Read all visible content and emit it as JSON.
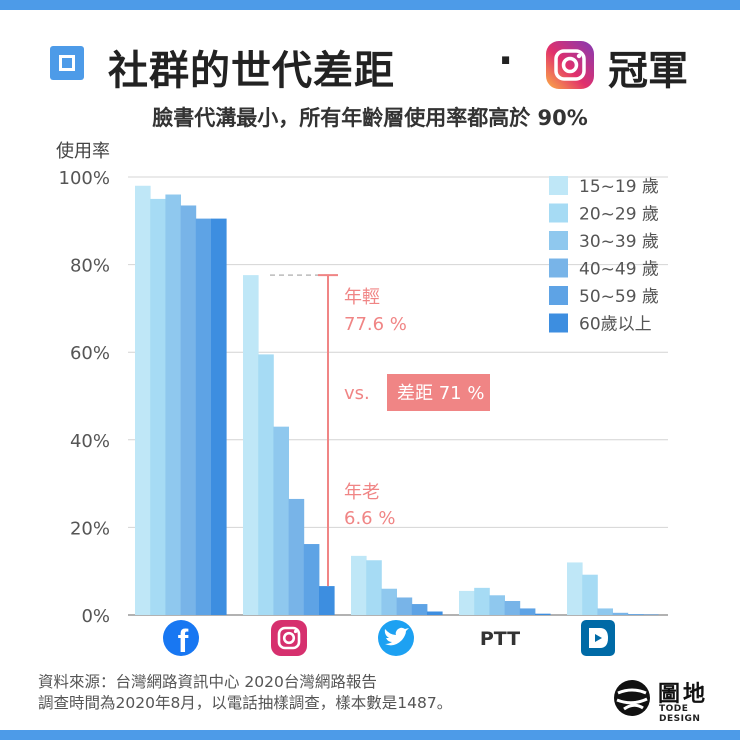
{
  "title": {
    "main": "社群的世代差距",
    "dot": "·",
    "suffix": "冠軍",
    "icon": "instagram-icon"
  },
  "subtitle": "臉書代溝最小，所有年齡層使用率都高於 90%",
  "chart_data": {
    "type": "bar",
    "ylabel": "使用率",
    "ylim": [
      0,
      100
    ],
    "yticks": [
      "0%",
      "20%",
      "40%",
      "60%",
      "80%",
      "100%"
    ],
    "grid": true,
    "legend_position": "top-right",
    "categories": [
      "Facebook",
      "Instagram",
      "Twitter",
      "PTT",
      "Dcard"
    ],
    "category_icons": [
      "facebook-icon",
      "instagram-icon",
      "twitter-icon",
      "ptt-text",
      "dcard-icon"
    ],
    "category_labels": [
      "",
      "",
      "",
      "PTT",
      ""
    ],
    "series": [
      {
        "name": "15~19 歲",
        "color": "#bfe7f7",
        "values": [
          98.0,
          77.6,
          13.5,
          5.5,
          12.0
        ]
      },
      {
        "name": "20~29 歲",
        "color": "#a6dbf4",
        "values": [
          95.0,
          59.5,
          12.5,
          6.2,
          9.2
        ]
      },
      {
        "name": "30~39 歲",
        "color": "#8fc8ee",
        "values": [
          96.0,
          43.0,
          6.0,
          4.5,
          1.5
        ]
      },
      {
        "name": "40~49 歲",
        "color": "#78b4e8",
        "values": [
          93.5,
          26.5,
          4.0,
          3.2,
          0.5
        ]
      },
      {
        "name": "50~59 歲",
        "color": "#5ea3e5",
        "values": [
          90.5,
          16.2,
          2.5,
          1.5,
          0.2
        ]
      },
      {
        "name": "60歲以上",
        "color": "#3d8ee0",
        "values": [
          90.5,
          6.6,
          0.8,
          0.3,
          0.1
        ]
      }
    ],
    "annotations": {
      "young_label": "年輕",
      "young_value": "77.6 %",
      "vs": "vs.",
      "gap": "差距 71 %",
      "old_label": "年老",
      "old_value": "6.6 %",
      "color": "#f08585"
    }
  },
  "source": {
    "line1": "資料來源：台灣網路資訊中心 2020台灣網路報告",
    "line2": "調查時間為2020年8月，以電話抽樣調查，樣本數是1487。"
  },
  "logo": {
    "name": "圖地",
    "sub": "TODE DESIGN"
  }
}
